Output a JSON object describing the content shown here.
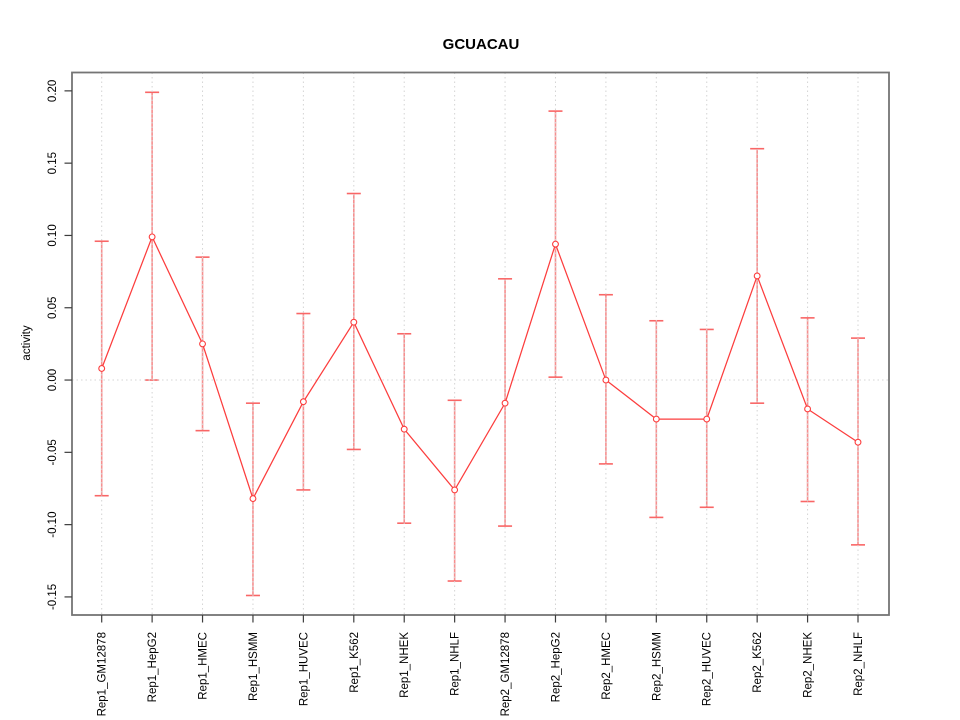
{
  "chart_data": {
    "type": "line",
    "title": "GCUACAU",
    "xlabel": "",
    "ylabel": "activity",
    "legend_position": "none",
    "grid": "dotted vertical line at each category; dotted horizontal line at y=0",
    "point_shape": "open-circle-with-error-bars",
    "categories": [
      "Rep1_GM12878",
      "Rep1_HepG2",
      "Rep1_HMEC",
      "Rep1_HSMM",
      "Rep1_HUVEC",
      "Rep1_K562",
      "Rep1_NHEK",
      "Rep1_NHLF",
      "Rep2_GM12878",
      "Rep2_HepG2",
      "Rep2_HMEC",
      "Rep2_HSMM",
      "Rep2_HUVEC",
      "Rep2_K562",
      "Rep2_NHEK",
      "Rep2_NHLF"
    ],
    "series": [
      {
        "name": "activity",
        "values": [
          0.008,
          0.099,
          0.025,
          -0.082,
          -0.015,
          0.04,
          -0.034,
          -0.076,
          -0.016,
          0.094,
          0.0,
          -0.027,
          -0.027,
          0.072,
          -0.02,
          -0.043
        ],
        "upper": [
          0.096,
          0.199,
          0.085,
          -0.016,
          0.046,
          0.129,
          0.032,
          -0.014,
          0.07,
          0.186,
          0.059,
          0.041,
          0.035,
          0.16,
          0.043,
          0.029
        ],
        "lower": [
          -0.08,
          0.0,
          -0.035,
          -0.149,
          -0.076,
          -0.048,
          -0.099,
          -0.139,
          -0.101,
          0.002,
          -0.058,
          -0.095,
          -0.088,
          -0.016,
          -0.084,
          -0.114
        ]
      }
    ],
    "yticks": [
      "-0.15",
      "-0.10",
      "-0.05",
      "0.00",
      "0.05",
      "0.10",
      "0.15",
      "0.20"
    ],
    "ylim": [
      -0.1625,
      0.2127
    ],
    "colors": {
      "line": "#fc3d3d",
      "point_stroke": "#fc3d3d",
      "point_fill": "#ffffff",
      "error_bar": "#f78f8f",
      "error_cap": "#f96666",
      "grid": "#d4d4d4",
      "zero_line": "#d4d4d4",
      "box": "#757575",
      "tick": "#3d3d3d",
      "text": "#000000",
      "background": "#ffffff"
    }
  }
}
